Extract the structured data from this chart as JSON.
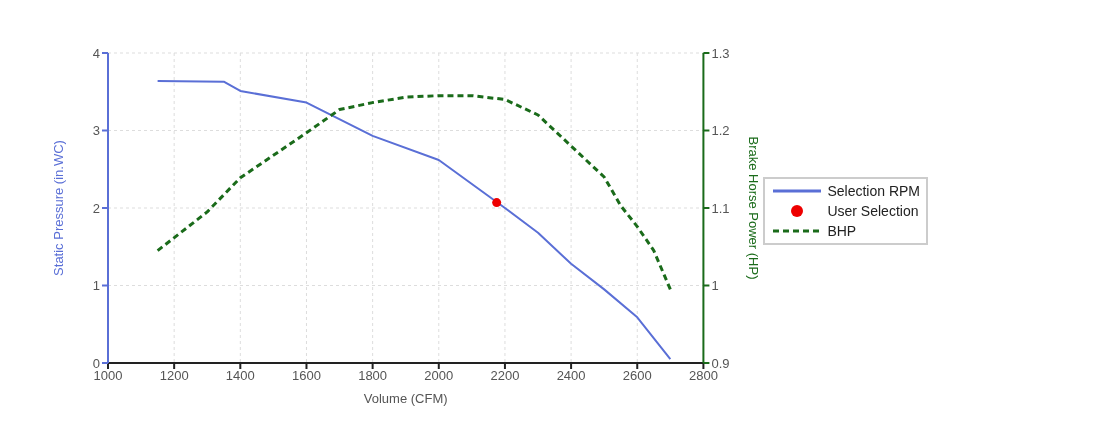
{
  "chart_data": {
    "type": "line",
    "xlabel": "Volume (CFM)",
    "ylabel": "Static Pressure (in.WC)",
    "y2label": "Brake Horse Power (HP)",
    "xlim": [
      1000,
      2800
    ],
    "xticks": [
      1000,
      1200,
      1400,
      1600,
      1800,
      2000,
      2200,
      2400,
      2600,
      2800
    ],
    "ylim": [
      0,
      4
    ],
    "yticks": [
      0,
      1,
      2,
      3,
      4
    ],
    "y2lim": [
      0.9,
      1.3
    ],
    "y2ticks": [
      0.9,
      1,
      1.1,
      1.2,
      1.3
    ],
    "grid": true,
    "legend": "right",
    "series": [
      {
        "name": "Selection RPM",
        "color": "#5a6fd6",
        "line_style": "solid",
        "marker": "none",
        "x": [
          1150,
          1350,
          1400,
          1600,
          1800,
          2000,
          2200,
          2300,
          2400,
          2500,
          2600,
          2700
        ],
        "values": [
          3.64,
          3.63,
          3.51,
          3.36,
          2.93,
          2.62,
          2.0,
          1.68,
          1.28,
          0.95,
          0.59,
          0.05
        ]
      },
      {
        "name": "User Selection",
        "type": "scatter",
        "color": "#ee0000",
        "marker": "circle",
        "x": [
          2175
        ],
        "values": [
          2.07
        ]
      },
      {
        "name": "BHP",
        "axis": "y2",
        "color": "#1a6b1a",
        "line_style": "dashed",
        "marker": "none",
        "x": [
          1150,
          1300,
          1400,
          1600,
          1700,
          1800,
          1900,
          2000,
          2100,
          2200,
          2300,
          2400,
          2500,
          2550,
          2600,
          2650,
          2700
        ],
        "values": [
          1.045,
          1.095,
          1.139,
          1.197,
          1.227,
          1.236,
          1.243,
          1.245,
          1.245,
          1.24,
          1.22,
          1.18,
          1.14,
          1.103,
          1.076,
          1.045,
          0.995
        ]
      }
    ]
  }
}
